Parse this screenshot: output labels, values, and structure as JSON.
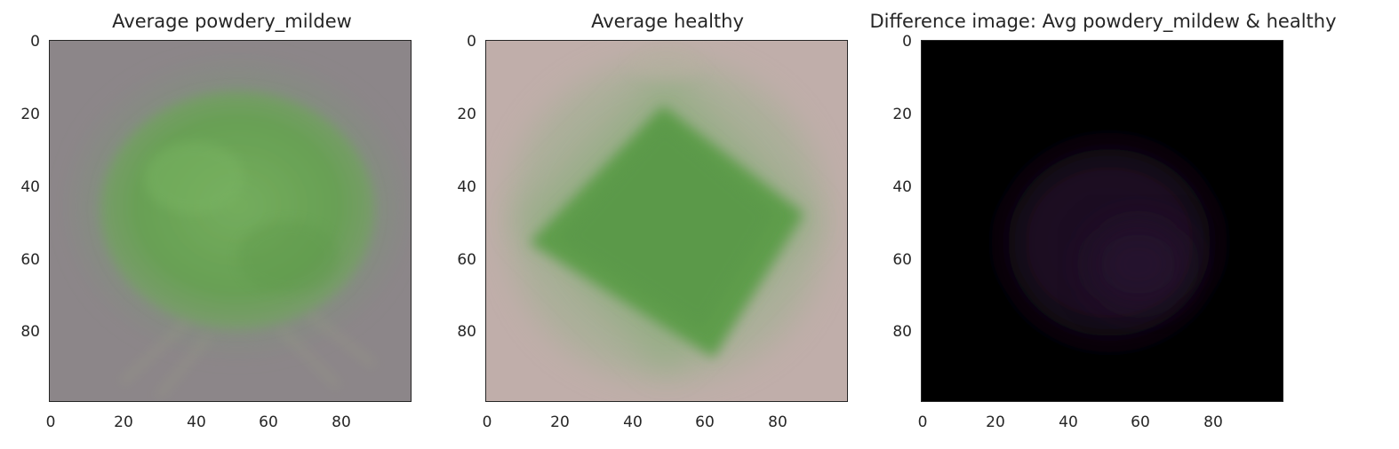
{
  "chart_data": [
    {
      "type": "heatmap",
      "title": "Average powdery_mildew",
      "xticks": [
        "0",
        "20",
        "40",
        "60",
        "80"
      ],
      "yticks": [
        "0",
        "20",
        "40",
        "60",
        "80"
      ],
      "xlim": [
        0,
        100
      ],
      "ylim": [
        0,
        100
      ],
      "grid": false,
      "background_color": "#8c8689",
      "leaf_color": "#6aa457",
      "leaf_shape": "rounded-ellipse"
    },
    {
      "type": "heatmap",
      "title": "Average healthy",
      "xticks": [
        "0",
        "20",
        "40",
        "60",
        "80"
      ],
      "yticks": [
        "0",
        "20",
        "40",
        "60",
        "80"
      ],
      "xlim": [
        0,
        100
      ],
      "ylim": [
        0,
        100
      ],
      "grid": false,
      "background_color": "#c0aeaa",
      "leaf_color": "#5f9d4b",
      "leaf_shape": "diamond"
    },
    {
      "type": "heatmap",
      "title": "Difference image: Avg powdery_mildew & healthy",
      "xticks": [
        "0",
        "20",
        "40",
        "60",
        "80"
      ],
      "yticks": [
        "0",
        "20",
        "40",
        "60",
        "80"
      ],
      "xlim": [
        0,
        100
      ],
      "ylim": [
        0,
        100
      ],
      "grid": false,
      "background_color": "#000000",
      "leaf_color": "#1c0f22",
      "leaf_shape": "faint-blob"
    }
  ]
}
